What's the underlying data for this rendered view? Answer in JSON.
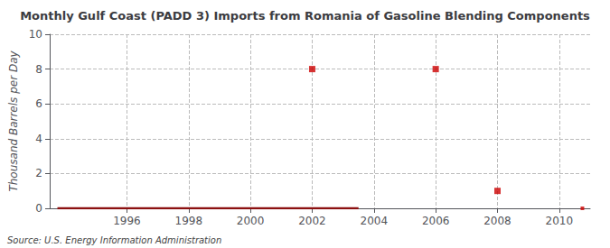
{
  "chart_data": {
    "type": "scatter",
    "title": "Monthly Gulf Coast (PADD 3) Imports from Romania of Gasoline Blending Components",
    "ylabel": "Thousand Barrels per Day",
    "annotation": "Source: U.S. Energy Information Administration",
    "series": [
      {
        "type": "line",
        "color": "#8b1010",
        "x": [
          1993.75,
          2003.5
        ],
        "values": [
          0,
          0
        ]
      },
      {
        "type": "scatter",
        "color": "#cc0000",
        "marker": "square",
        "x": [
          2002.0,
          2006.0,
          2008.0,
          2010.75
        ],
        "values": [
          8,
          8,
          1,
          0
        ]
      }
    ],
    "xlim": [
      1993.5,
      2011.0
    ],
    "xticks": [
      1996,
      1998,
      2000,
      2002,
      2004,
      2006,
      2008,
      2010
    ],
    "ylim": [
      0,
      10
    ],
    "yticks": [
      0,
      2,
      4,
      6,
      8,
      10
    ],
    "grid": true
  }
}
